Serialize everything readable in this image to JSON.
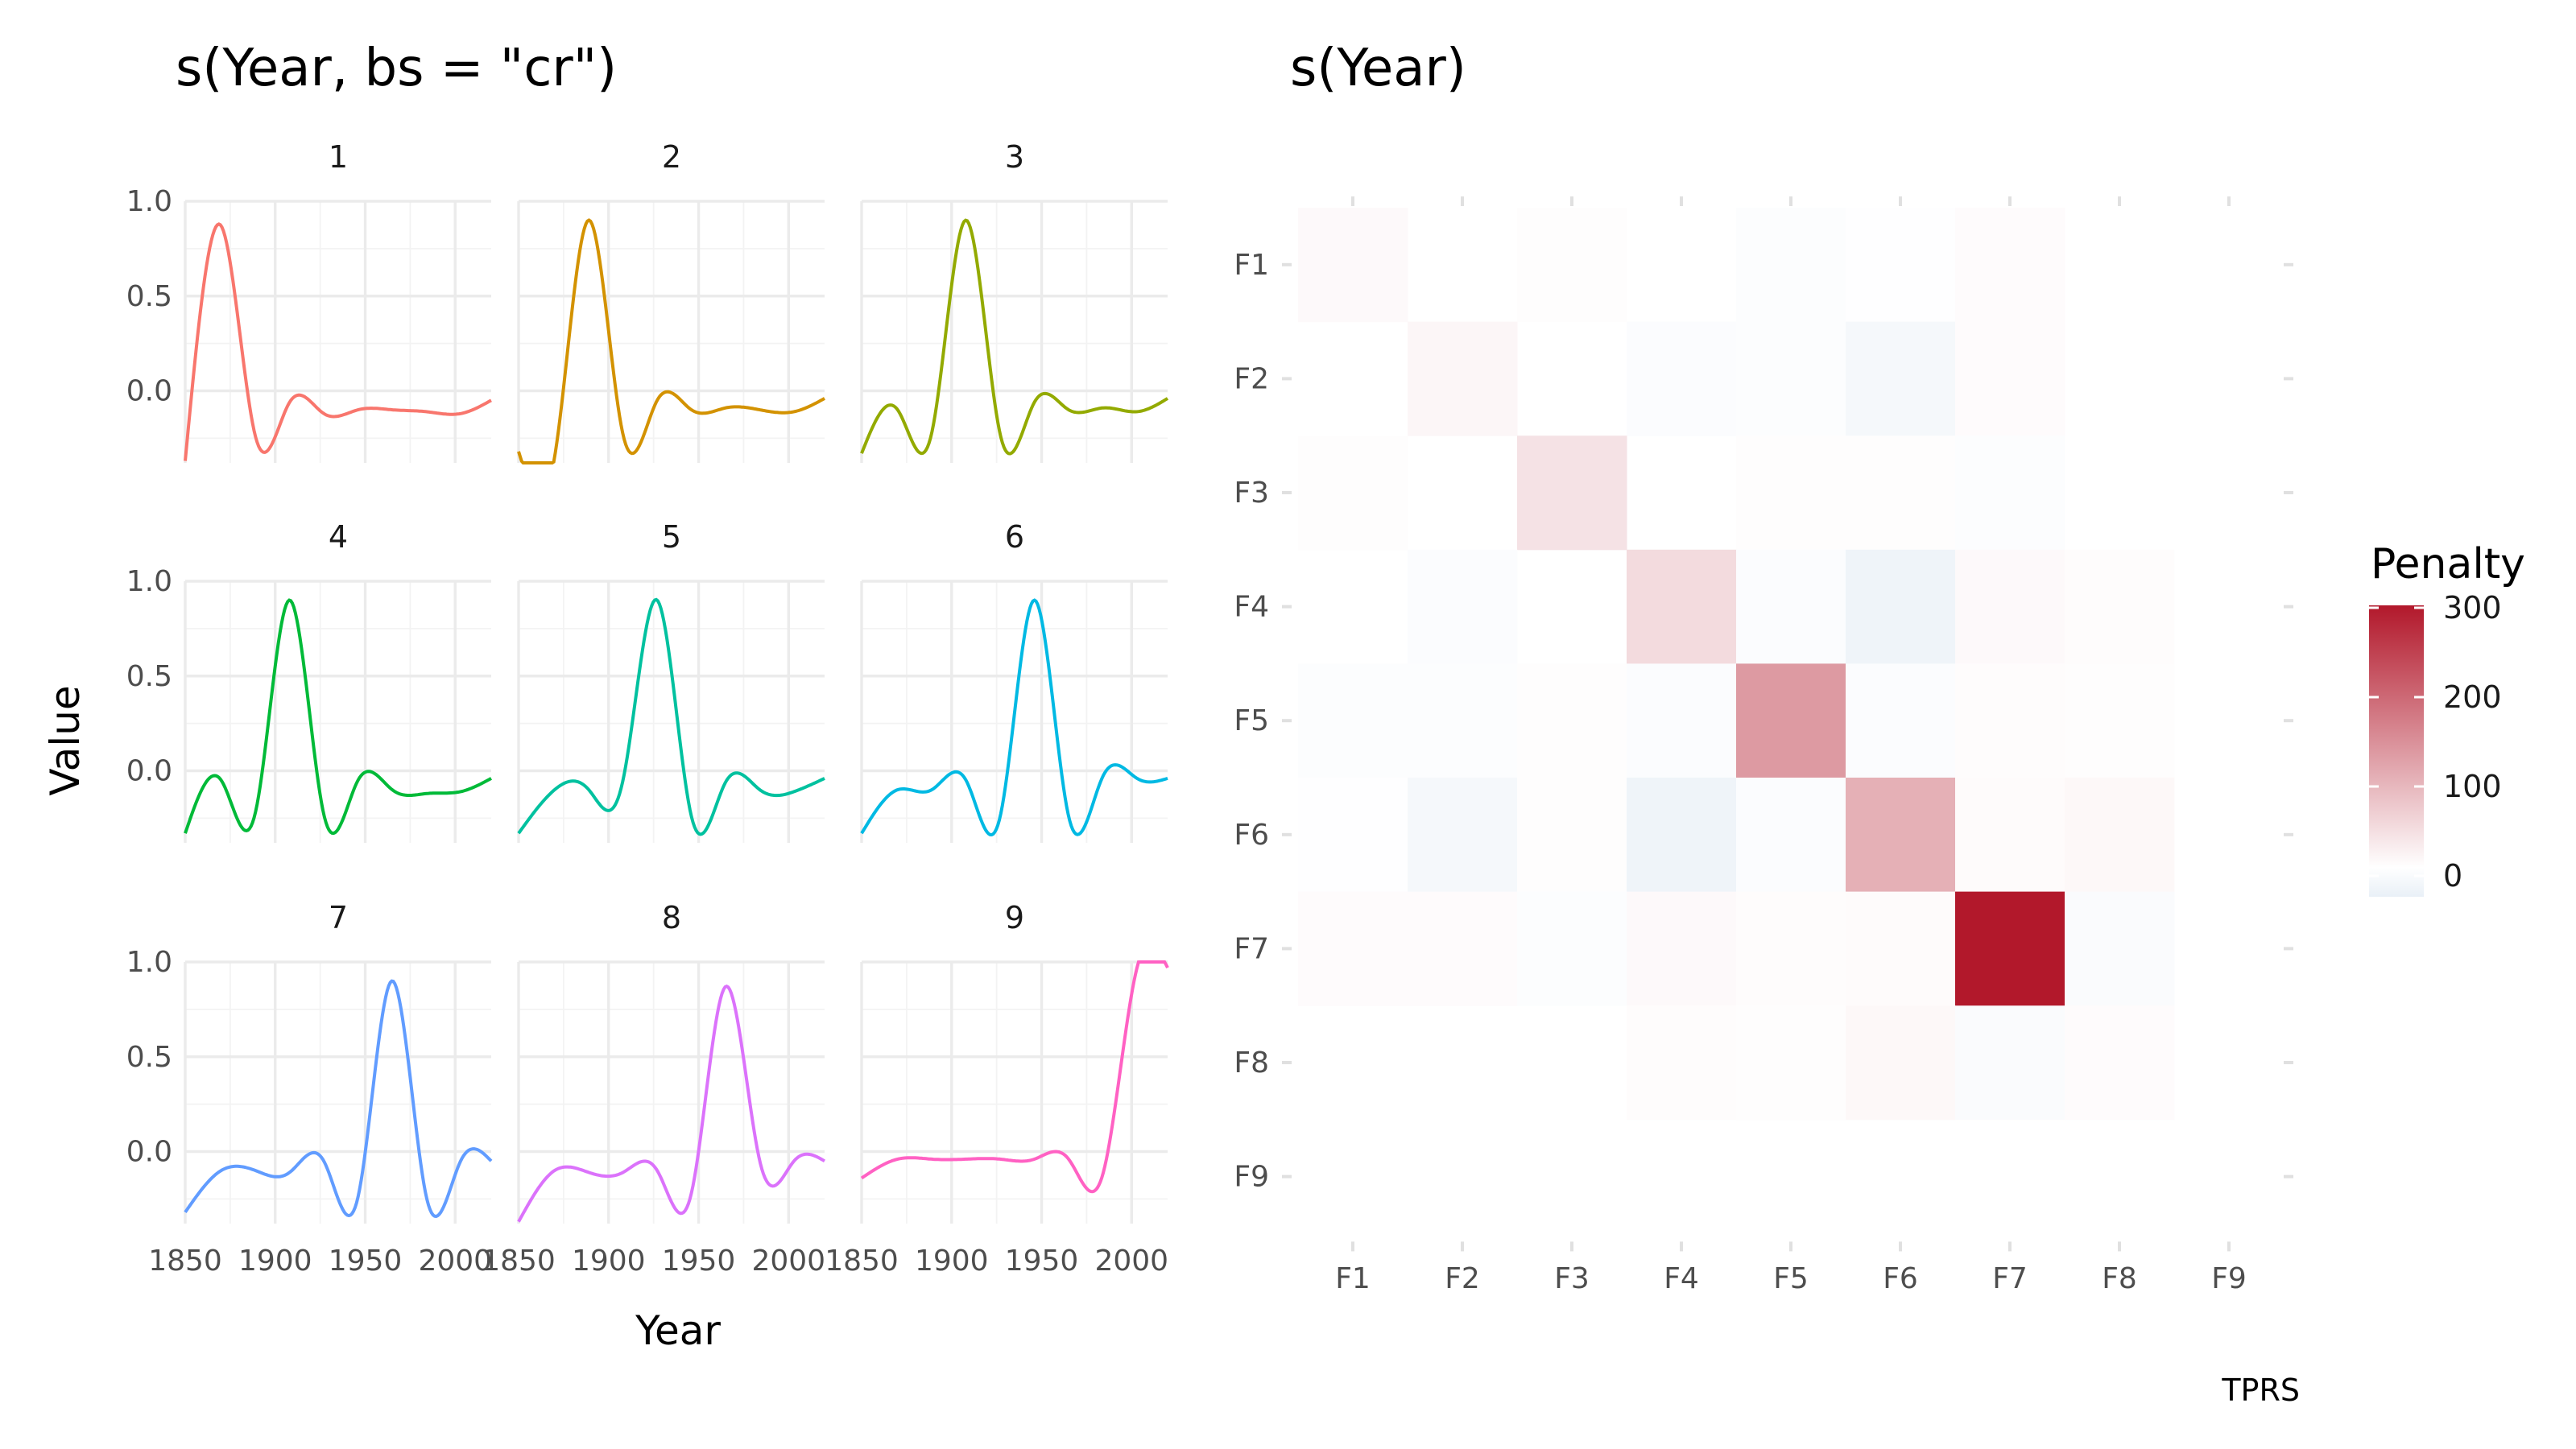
{
  "chart_data": [
    {
      "type": "line",
      "title": "s(Year, bs = \"cr\")",
      "xlabel": "Year",
      "ylabel": "Value",
      "xlim": [
        1850,
        2020
      ],
      "ylim": [
        -0.38,
        1.0
      ],
      "x_ticks": [
        "1850",
        "1900",
        "1950",
        "2000"
      ],
      "y_ticks": [
        "0.0",
        "0.5",
        "1.0"
      ],
      "knots": [
        1850,
        1870,
        1889,
        1908,
        1927,
        1946,
        1965,
        1984,
        2003,
        2020
      ],
      "panels": [
        {
          "label": "1",
          "color": "#F8766D",
          "values": [
            -0.37,
            0.87,
            -0.24,
            -0.06,
            -0.12,
            -0.1,
            -0.1,
            -0.11,
            -0.12,
            -0.05
          ]
        },
        {
          "label": "2",
          "color": "#D39200",
          "values": [
            -0.32,
            -0.35,
            0.9,
            -0.23,
            -0.05,
            -0.1,
            -0.09,
            -0.1,
            -0.11,
            -0.04
          ]
        },
        {
          "label": "3",
          "color": "#93AA00",
          "values": [
            -0.33,
            -0.1,
            -0.22,
            0.9,
            -0.23,
            -0.06,
            -0.1,
            -0.09,
            -0.11,
            -0.04
          ]
        },
        {
          "label": "4",
          "color": "#00BA38",
          "values": [
            -0.33,
            -0.05,
            -0.22,
            0.9,
            -0.23,
            -0.05,
            -0.1,
            -0.12,
            -0.11,
            -0.04
          ]
        },
        {
          "label": "5",
          "color": "#00C19F",
          "values": [
            -0.33,
            -0.1,
            -0.1,
            -0.05,
            0.9,
            -0.24,
            -0.06,
            -0.1,
            -0.11,
            -0.04
          ]
        },
        {
          "label": "6",
          "color": "#00B9E3",
          "values": [
            -0.33,
            -0.1,
            -0.1,
            -0.05,
            -0.24,
            0.9,
            -0.24,
            -0.03,
            -0.04,
            -0.04
          ]
        },
        {
          "label": "7",
          "color": "#619CFF",
          "values": [
            -0.32,
            -0.1,
            -0.1,
            -0.11,
            -0.05,
            -0.24,
            0.9,
            -0.24,
            -0.05,
            -0.05
          ]
        },
        {
          "label": "8",
          "color": "#DB72FB",
          "values": [
            -0.37,
            -0.1,
            -0.11,
            -0.11,
            -0.1,
            -0.22,
            0.87,
            -0.05,
            -0.05,
            -0.05
          ]
        },
        {
          "label": "9",
          "color": "#FF61C3",
          "values": [
            -0.14,
            -0.04,
            -0.04,
            -0.04,
            -0.04,
            -0.04,
            -0.04,
            -0.12,
            0.97,
            0.97
          ]
        }
      ]
    },
    {
      "type": "heatmap",
      "title": "s(Year)",
      "caption": "TPRS",
      "x_categories": [
        "F1",
        "F2",
        "F3",
        "F4",
        "F5",
        "F6",
        "F7",
        "F8",
        "F9"
      ],
      "y_categories": [
        "F1",
        "F2",
        "F3",
        "F4",
        "F5",
        "F6",
        "F7",
        "F8",
        "F9"
      ],
      "values": [
        [
          8,
          0,
          3,
          0,
          -2,
          -1,
          5,
          0,
          0
        ],
        [
          0,
          12,
          0,
          -3,
          -2,
          -8,
          5,
          0,
          0
        ],
        [
          3,
          0,
          40,
          0,
          3,
          3,
          -2,
          0,
          0
        ],
        [
          0,
          -3,
          0,
          50,
          -3,
          -12,
          8,
          4,
          0
        ],
        [
          -2,
          -2,
          3,
          -3,
          140,
          -3,
          4,
          3,
          0
        ],
        [
          -1,
          -8,
          3,
          -12,
          -3,
          110,
          6,
          10,
          0
        ],
        [
          5,
          5,
          -2,
          8,
          4,
          6,
          320,
          -4,
          0
        ],
        [
          0,
          0,
          0,
          4,
          3,
          10,
          -4,
          5,
          0
        ],
        [
          0,
          0,
          0,
          0,
          0,
          0,
          0,
          0,
          0
        ]
      ],
      "legend": {
        "title": "Penalty",
        "ticks": [
          "0",
          "100",
          "200",
          "300"
        ],
        "low_color": "#2166AC",
        "mid_color": "#FFFFFF",
        "high_color": "#B2182B"
      }
    }
  ]
}
